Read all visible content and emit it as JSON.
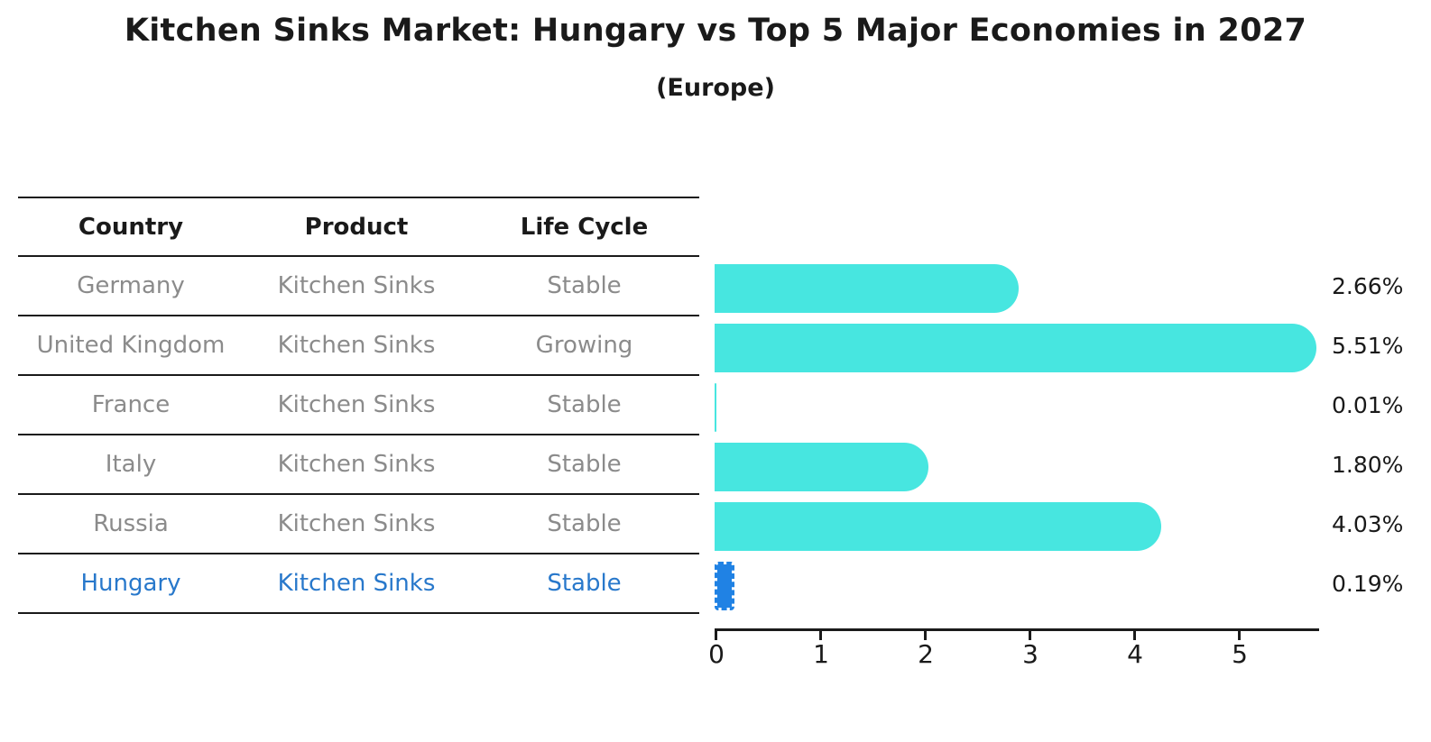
{
  "title": "Kitchen Sinks Market: Hungary vs Top 5 Major Economies in 2027",
  "subtitle": "(Europe)",
  "table": {
    "headers": [
      "Country",
      "Product",
      "Life Cycle"
    ],
    "rows": [
      {
        "country": "Germany",
        "product": "Kitchen Sinks",
        "life_cycle": "Stable",
        "highlight": false
      },
      {
        "country": "United Kingdom",
        "product": "Kitchen Sinks",
        "life_cycle": "Growing",
        "highlight": false
      },
      {
        "country": "France",
        "product": "Kitchen Sinks",
        "life_cycle": "Stable",
        "highlight": false
      },
      {
        "country": "Italy",
        "product": "Kitchen Sinks",
        "life_cycle": "Stable",
        "highlight": false
      },
      {
        "country": "Russia",
        "product": "Kitchen Sinks",
        "life_cycle": "Stable",
        "highlight": false
      },
      {
        "country": "Hungary",
        "product": "Kitchen Sinks",
        "life_cycle": "Stable",
        "highlight": true
      }
    ]
  },
  "chart_data": {
    "type": "bar",
    "orientation": "horizontal",
    "title": "Kitchen Sinks Market: Hungary vs Top 5 Major Economies in 2027 (Europe)",
    "categories": [
      "Germany",
      "United Kingdom",
      "France",
      "Italy",
      "Russia",
      "Hungary"
    ],
    "values": [
      2.66,
      5.51,
      0.01,
      1.8,
      4.03,
      0.19
    ],
    "value_labels": [
      "2.66%",
      "5.51%",
      "0.01%",
      "1.80%",
      "4.03%",
      "0.19%"
    ],
    "unit": "percent",
    "xlabel": "",
    "ylabel": "",
    "xlim": [
      0,
      5.78
    ],
    "x_ticks": [
      0,
      1,
      2,
      3,
      4,
      5
    ],
    "grid": false,
    "legend": false,
    "highlight_index": 5,
    "highlight_category": "Hungary"
  },
  "colors": {
    "bar": "#47e6e0",
    "bar-hl": "#2082e4",
    "text": "#1a1a1a",
    "muted": "#8b8b8b",
    "hl-text": "#2878cb",
    "line": "#1a1a1a"
  }
}
